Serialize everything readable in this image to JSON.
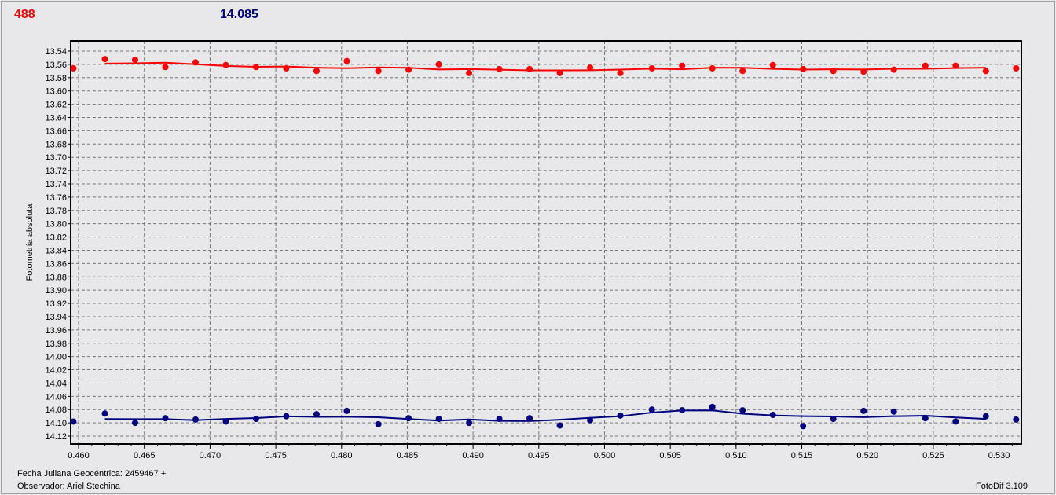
{
  "header": {
    "left_value": "488",
    "right_value": "14.085"
  },
  "footer": {
    "date_label": "Fecha Juliana Geocéntrica: 2459467 +",
    "observer": "Observador: Ariel Stechina",
    "app_version": "FotoDif 3.109"
  },
  "chart_data": {
    "type": "scatter",
    "ylabel": "Fotometría absoluta",
    "xlabel": "",
    "xlim": [
      0.4594,
      0.5317
    ],
    "ylim": [
      14.1318,
      13.5246
    ],
    "y_inverted": true,
    "grid": true,
    "xticks": [
      0.46,
      0.465,
      0.47,
      0.475,
      0.48,
      0.485,
      0.49,
      0.495,
      0.5,
      0.505,
      0.51,
      0.515,
      0.52,
      0.525,
      0.53
    ],
    "yticks": [
      13.54,
      13.56,
      13.58,
      13.6,
      13.62,
      13.64,
      13.66,
      13.68,
      13.7,
      13.72,
      13.74,
      13.76,
      13.78,
      13.8,
      13.82,
      13.84,
      13.86,
      13.88,
      13.9,
      13.92,
      13.94,
      13.96,
      13.98,
      14.0,
      14.02,
      14.04,
      14.06,
      14.08,
      14.1,
      14.12
    ],
    "x": [
      0.4596,
      0.462,
      0.4643,
      0.4666,
      0.4689,
      0.4712,
      0.4735,
      0.4758,
      0.4781,
      0.4804,
      0.4828,
      0.4851,
      0.4874,
      0.4897,
      0.492,
      0.4943,
      0.4966,
      0.4989,
      0.5012,
      0.5036,
      0.5059,
      0.5082,
      0.5105,
      0.5128,
      0.5151,
      0.5174,
      0.5197,
      0.522,
      0.5244,
      0.5267,
      0.529,
      0.5313
    ],
    "series": [
      {
        "color": "#ff0000",
        "values": [
          13.566,
          13.552,
          13.553,
          13.564,
          13.557,
          13.561,
          13.564,
          13.566,
          13.57,
          13.555,
          13.57,
          13.568,
          13.56,
          13.573,
          13.567,
          13.567,
          13.573,
          13.565,
          13.573,
          13.566,
          13.562,
          13.566,
          13.57,
          13.561,
          13.567,
          13.57,
          13.571,
          13.568,
          13.562,
          13.562,
          13.57,
          13.566
        ]
      },
      {
        "color": "#000080",
        "values": [
          14.098,
          14.086,
          14.1,
          14.093,
          14.095,
          14.098,
          14.094,
          14.09,
          14.087,
          14.082,
          14.102,
          14.093,
          14.094,
          14.1,
          14.094,
          14.093,
          14.104,
          14.096,
          14.089,
          14.08,
          14.081,
          14.076,
          14.081,
          14.088,
          14.105,
          14.094,
          14.082,
          14.083,
          14.093,
          14.098,
          14.09,
          14.095
        ]
      }
    ]
  }
}
